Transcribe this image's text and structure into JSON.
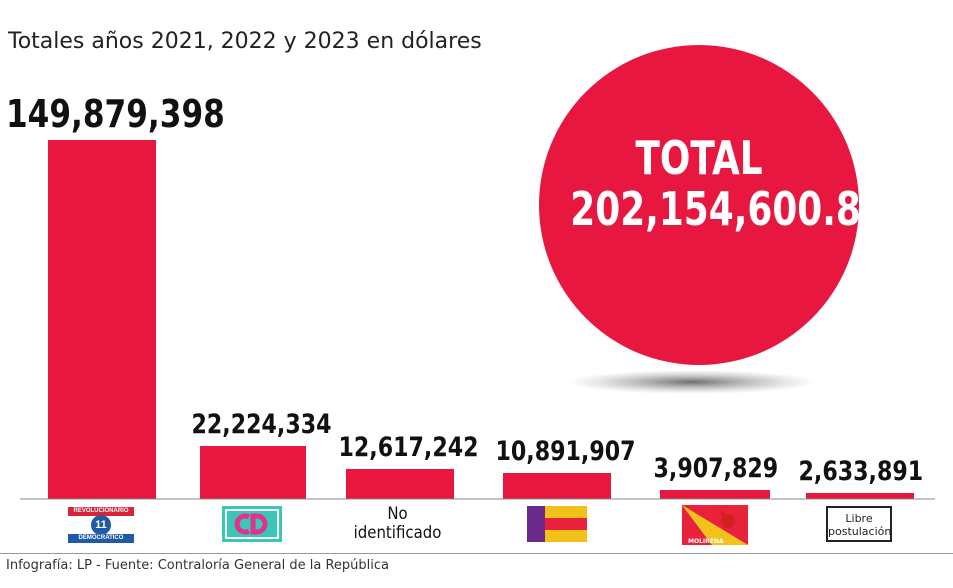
{
  "header": {
    "title_cut": "",
    "subtitle": "Totales años 2021, 2022 y 2023 en dólares"
  },
  "total": {
    "label": "TOTAL",
    "value": "202,154,600.82"
  },
  "colors": {
    "bar": "#e8173f",
    "circle": "#e8173f"
  },
  "chart_data": {
    "type": "bar",
    "title": "",
    "subtitle": "Totales años 2021, 2022 y 2023 en dólares",
    "categories": [
      "Revolucionario Democrático",
      "CD",
      "No identificado",
      "",
      "Molirena",
      "Libre postulación"
    ],
    "values": [
      149879398,
      22224334,
      12617242,
      10891907,
      3907829,
      2633891
    ],
    "value_labels": [
      "149,879,398",
      "22,224,334",
      "12,617,242",
      "10,891,907",
      "3,907,829",
      "2,633,891"
    ],
    "ylim": [
      0,
      150000000
    ],
    "xlabel": "",
    "ylabel": "",
    "grid": false,
    "legend": "none"
  },
  "categories_display": {
    "no_identificado": [
      "No",
      "identificado"
    ],
    "rd_top": "REVOLUCIONARIO",
    "rd_number": "11",
    "rd_bottom": "DEMOCRATICO",
    "molirena": "MOLIRENA",
    "libre": [
      "Libre",
      "postulación"
    ]
  },
  "footer": {
    "source": "Infografía: LP - Fuente: Contraloría General de la República"
  }
}
